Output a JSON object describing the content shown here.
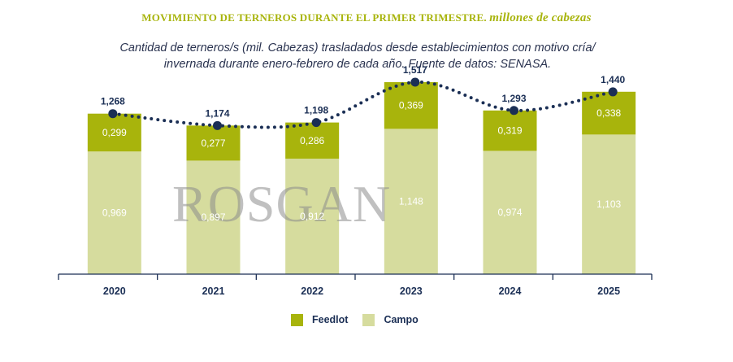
{
  "title": {
    "main": "MOVIMIENTO DE TERNEROS DURANTE EL PRIMER TRIMESTRE.",
    "unit": "millones de cabezas"
  },
  "subtitle": {
    "line1": "Cantidad de terneros/s (mil. Cabezas) trasladados desde establecimientos con motivo cría/",
    "line2": "invernada durante enero-febrero de cada año. Fuente de datos: SENASA."
  },
  "watermark": "ROSGAN",
  "colors": {
    "feedlot": "#a8b40c",
    "campo": "#d6dc9e",
    "total_line": "#1b2f55",
    "text": "#1b2f55"
  },
  "chart_data": {
    "type": "bar",
    "stacked": true,
    "categories": [
      "2020",
      "2021",
      "2022",
      "2023",
      "2024",
      "2025"
    ],
    "series": [
      {
        "name": "Campo",
        "values": [
          0.969,
          0.897,
          0.912,
          1.148,
          0.974,
          1.103
        ],
        "labels": [
          "0,969",
          "0,897",
          "0,912",
          "1,148",
          "0,974",
          "1,103"
        ]
      },
      {
        "name": "Feedlot",
        "values": [
          0.299,
          0.277,
          0.286,
          0.369,
          0.319,
          0.338
        ],
        "labels": [
          "0,299",
          "0,277",
          "0,286",
          "0,369",
          "0,319",
          "0,338"
        ]
      }
    ],
    "totals": {
      "values": [
        1.268,
        1.174,
        1.198,
        1.517,
        1.293,
        1.44
      ],
      "labels": [
        "1,268",
        "1,174",
        "1,198",
        "1,517",
        "1,293",
        "1,440"
      ],
      "style": "dotted line with markers"
    },
    "ylim": [
      0,
      1.6
    ],
    "grid": false,
    "legend_position": "bottom"
  },
  "legend": [
    {
      "name": "Feedlot",
      "color": "#a8b40c"
    },
    {
      "name": "Campo",
      "color": "#d6dc9e"
    }
  ]
}
